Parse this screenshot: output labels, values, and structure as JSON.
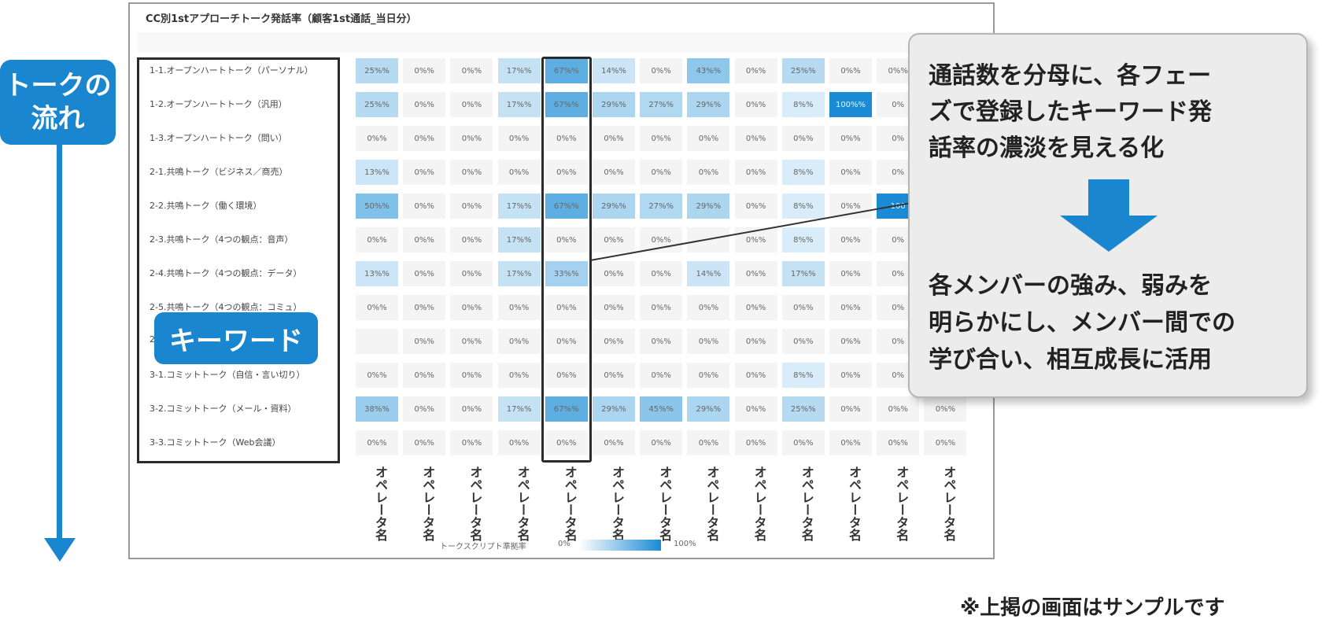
{
  "flow_label": "トークの\n流れ",
  "screen": {
    "title": "CC別1stアプローチトーク発話率（顧客1st通話_当日分）",
    "rows": [
      "1-1.オープンハートトーク（パーソナル）",
      "1-2.オープンハートトーク（汎用）",
      "1-3.オープンハートトーク（問い）",
      "2-1.共鳴トーク（ビジネス／商売）",
      "2-2.共鳴トーク（働く環境）",
      "2-3.共鳴トーク（4つの観点：音声）",
      "2-4.共鳴トーク（4つの観点：データ）",
      "2-5.共鳴トーク（4つの観点：コミュ）",
      "2",
      "3-1.コミットトーク（自信・言い切り）",
      "3-2.コミットトーク（メール・資料）",
      "3-3.コミットトーク（Web会議）"
    ],
    "columns": [
      "オペレータ名",
      "オペレータ名",
      "オペレータ名",
      "オペレータ名",
      "オペレータ名",
      "オペレータ名",
      "オペレータ名",
      "オペレータ名",
      "オペレータ名",
      "オペレータ名",
      "オペレータ名",
      "オペレータ名",
      "オペレータ名"
    ],
    "cells": [
      [
        "25%%",
        "0%%",
        "0%%",
        "17%%",
        "67%%",
        "14%%",
        "0%%",
        "43%%",
        "0%%",
        "25%%",
        "0%%",
        "0%%",
        ""
      ],
      [
        "25%%",
        "0%%",
        "0%%",
        "17%%",
        "67%%",
        "29%%",
        "27%%",
        "29%%",
        "0%%",
        "8%%",
        "100%%",
        "0%",
        ""
      ],
      [
        "0%%",
        "0%%",
        "0%%",
        "0%%",
        "0%%",
        "0%%",
        "0%%",
        "0%%",
        "0%%",
        "0%%",
        "0%%",
        "0%",
        ""
      ],
      [
        "13%%",
        "0%%",
        "0%%",
        "0%%",
        "0%%",
        "0%%",
        "0%%",
        "0%%",
        "0%%",
        "8%%",
        "0%%",
        "0%",
        ""
      ],
      [
        "50%%",
        "0%%",
        "0%%",
        "17%%",
        "67%%",
        "29%%",
        "27%%",
        "29%%",
        "0%%",
        "8%%",
        "0%%",
        "100",
        ""
      ],
      [
        "0%%",
        "0%%",
        "0%%",
        "17%%",
        "0%%",
        "0%%",
        "0%%",
        "",
        "0%%",
        "8%%",
        "0%%",
        "0%",
        ""
      ],
      [
        "13%%",
        "0%%",
        "0%%",
        "17%%",
        "33%%",
        "0%%",
        "0%%",
        "14%%",
        "0%%",
        "17%%",
        "0%%",
        "0%",
        ""
      ],
      [
        "0%%",
        "0%%",
        "0%%",
        "0%%",
        "0%%",
        "0%%",
        "0%%",
        "0%%",
        "0%%",
        "0%%",
        "0%%",
        "0%",
        ""
      ],
      [
        "",
        "0%%",
        "0%%",
        "0%%",
        "0%%",
        "0%%",
        "0%%",
        "0%%",
        "0%%",
        "0%%",
        "0%%",
        "0%",
        ""
      ],
      [
        "0%%",
        "0%%",
        "0%%",
        "0%%",
        "0%%",
        "0%%",
        "0%%",
        "0%%",
        "0%%",
        "8%%",
        "0%%",
        "0%",
        ""
      ],
      [
        "38%%",
        "0%%",
        "0%%",
        "17%%",
        "67%%",
        "29%%",
        "45%%",
        "29%%",
        "0%%",
        "25%%",
        "0%%",
        "0%%",
        "0%%"
      ],
      [
        "0%%",
        "0%%",
        "0%%",
        "0%%",
        "0%%",
        "0%%",
        "0%%",
        "0%%",
        "0%%",
        "0%%",
        "0%%",
        "0%%",
        "0%%"
      ]
    ],
    "intensity": [
      [
        25,
        0,
        0,
        17,
        67,
        14,
        0,
        43,
        0,
        25,
        0,
        0,
        0
      ],
      [
        25,
        0,
        0,
        17,
        67,
        29,
        27,
        29,
        0,
        8,
        100,
        0,
        0
      ],
      [
        0,
        0,
        0,
        0,
        0,
        0,
        0,
        0,
        0,
        0,
        0,
        0,
        0
      ],
      [
        13,
        0,
        0,
        0,
        0,
        0,
        0,
        0,
        0,
        8,
        0,
        0,
        0
      ],
      [
        50,
        0,
        0,
        17,
        67,
        29,
        27,
        29,
        0,
        8,
        0,
        100,
        0
      ],
      [
        0,
        0,
        0,
        17,
        0,
        0,
        0,
        0,
        0,
        8,
        0,
        0,
        0
      ],
      [
        13,
        0,
        0,
        17,
        33,
        0,
        0,
        14,
        0,
        17,
        0,
        0,
        0
      ],
      [
        0,
        0,
        0,
        0,
        0,
        0,
        0,
        0,
        0,
        0,
        0,
        0,
        0
      ],
      [
        0,
        0,
        0,
        0,
        0,
        0,
        0,
        0,
        0,
        0,
        0,
        0,
        0
      ],
      [
        0,
        0,
        0,
        0,
        0,
        0,
        0,
        0,
        0,
        8,
        0,
        0,
        0
      ],
      [
        38,
        0,
        0,
        17,
        67,
        29,
        45,
        29,
        0,
        25,
        0,
        0,
        0
      ],
      [
        0,
        0,
        0,
        0,
        0,
        0,
        0,
        0,
        0,
        0,
        0,
        0,
        0
      ]
    ],
    "legend": {
      "label": "トークスクリプト準拠率",
      "min": "0%",
      "max": "100%"
    }
  },
  "keyword_badge": "キーワード",
  "callout": {
    "text1": "通話数を分母に、各フェー\nズで登録したキーワード発\n話率の濃淡を見える化",
    "text2": "各メンバーの強み、弱みを\n明らかにし、メンバー間での\n学び合い、相互成長に活用"
  },
  "colors": {
    "accent": "#1a86cf",
    "heat_max": "#1a8bd4",
    "heat_min": "#ffffff"
  },
  "note": "※上掲の画面はサンプルです"
}
